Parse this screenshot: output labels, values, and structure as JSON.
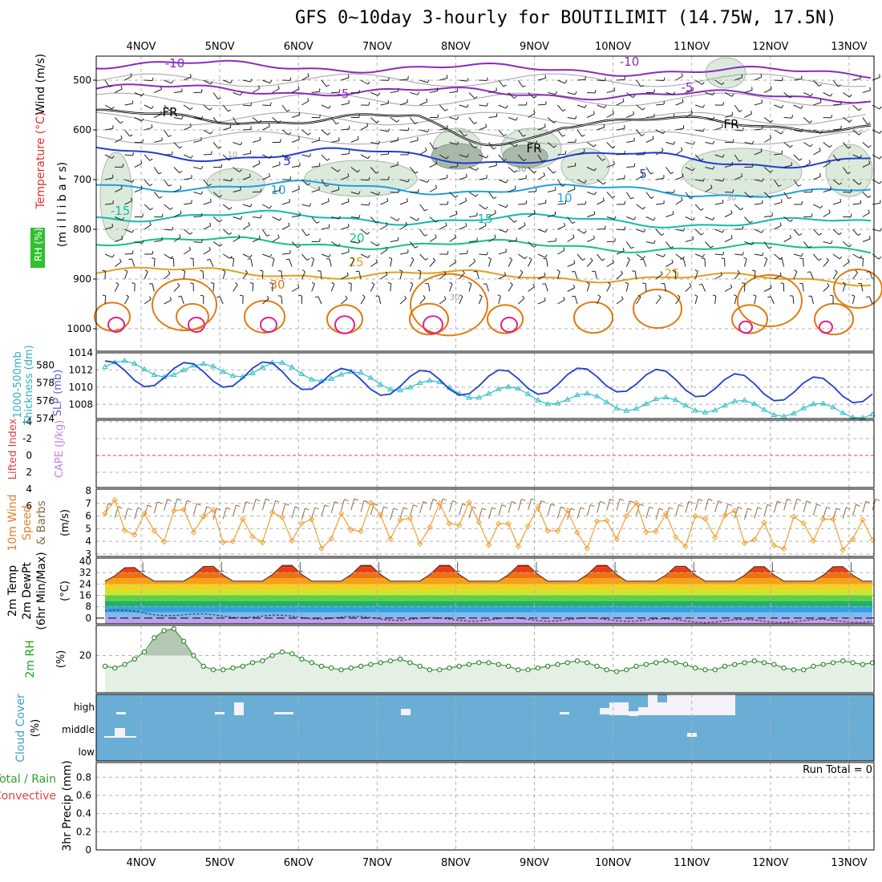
{
  "title": "GFS 0~10day 3-hourly for BOUTILIMIT (14.75W, 17.5N)",
  "dates": [
    "4NOV",
    "5NOV",
    "6NOV",
    "7NOV",
    "8NOV",
    "9NOV",
    "10NOV",
    "11NOV",
    "12NOV",
    "13NOV"
  ],
  "panels": {
    "upper": {
      "label_wind": "Wind (m/s)",
      "label_temp": "Temperature (°C)",
      "label_rh": "RH (%)",
      "label_unit": "(m i l l i b a r s)",
      "yticks": [
        "500",
        "600",
        "700",
        "800",
        "900",
        "1000"
      ]
    },
    "thick": {
      "label_a": "1000-500mb",
      "label_b": "Thickness (dm)",
      "label_c": "SLP (mb)",
      "left_ticks": [
        "580",
        "578",
        "576",
        "574"
      ],
      "right_ticks": [
        "1014",
        "1012",
        "1010",
        "1008"
      ]
    },
    "li": {
      "label_a": "Lifted Index",
      "label_b": "CAPE (J/kg)",
      "ticks": [
        "-4",
        "-2",
        "0",
        "2",
        "4",
        "6"
      ]
    },
    "wind10": {
      "label_a": "10m Wind",
      "label_b": "Speed",
      "label_c": "& Barbs",
      "label_unit": "(m/s)",
      "ticks": [
        "8",
        "7",
        "6",
        "5",
        "4",
        "3"
      ]
    },
    "temp2m": {
      "label_a": "2m Temp",
      "label_b": "2m DewPt",
      "label_c": "(6hr Min/Max)",
      "label_unit": "(°C)",
      "ticks": [
        "40",
        "32",
        "24",
        "16",
        "8",
        "0"
      ]
    },
    "rh2m": {
      "label_a": "2m RH",
      "label_unit": "(%)",
      "ticks": [
        "20"
      ]
    },
    "cloud": {
      "label_a": "Cloud Cover",
      "label_unit": "(%)",
      "ticks": [
        "high",
        "middle",
        "low"
      ]
    },
    "precip": {
      "label_a": "Total / Rain",
      "label_b": "Convective",
      "label_c": "3hr Precip (mm)",
      "ticks": [
        "0.8",
        "0.6",
        "0.4",
        "0.2",
        "0"
      ],
      "run_total": "Run Total = 0"
    }
  },
  "contour_labels": [
    "-10",
    "-10",
    "-5",
    "-5",
    "FR",
    "FR",
    "FR",
    "5",
    "5",
    "10",
    "10",
    "-15",
    "15",
    "20",
    "25",
    "25",
    "30",
    "30",
    "30",
    "30",
    "10"
  ],
  "colors": {
    "temp_purple": "#8a2bbd",
    "fr": "#000000",
    "t5": "#1f3fd0",
    "t10": "#1ea0e0",
    "t15": "#14b8b0",
    "t20": "#14c08a",
    "t25": "#e0a020",
    "t30": "#e07a10",
    "t35": "#e0208a",
    "slp": "#2040d0",
    "thick": "#30c0c8",
    "wind_speed": "#f0a030",
    "rh": "#30a030",
    "cloud": "#6aaed6",
    "cloud_white": "#f4f2f8"
  },
  "chart_data": [
    {
      "type": "line",
      "title": "1000-500mb Thickness (dm)",
      "x": [
        "4NOV",
        "5NOV",
        "6NOV",
        "7NOV",
        "8NOV",
        "9NOV",
        "10NOV",
        "11NOV",
        "12NOV",
        "13NOV"
      ],
      "series": [
        {
          "name": "1000-500mb Thickness (dm)",
          "values": [
            579.8,
            579.3,
            579.6,
            578.4,
            577.3,
            576.6,
            575.7,
            575.5,
            575.0,
            574.8
          ]
        }
      ],
      "ylim": [
        574,
        581
      ]
    },
    {
      "type": "line",
      "title": "SLP (mb)",
      "x": [
        "4NOV",
        "5NOV",
        "6NOV",
        "7NOV",
        "8NOV",
        "9NOV",
        "10NOV",
        "11NOV",
        "12NOV",
        "13NOV"
      ],
      "series": [
        {
          "name": "SLP (mb)",
          "values": [
            1011.6,
            1011.4,
            1011.5,
            1010.5,
            1010.5,
            1010.6,
            1010.9,
            1010.3,
            1009.8,
            1009.6
          ]
        }
      ],
      "ylim": [
        1007,
        1014
      ]
    },
    {
      "type": "line",
      "title": "10m Wind Speed (m/s)",
      "x": [
        "4NOV",
        "5NOV",
        "6NOV",
        "7NOV",
        "8NOV",
        "9NOV",
        "10NOV",
        "11NOV",
        "12NOV",
        "13NOV"
      ],
      "series": [
        {
          "name": "Speed",
          "values": [
            5.6,
            5.4,
            4.8,
            5.3,
            5.6,
            5.0,
            5.3,
            5.2,
            4.6,
            5.0
          ]
        }
      ],
      "ylim": [
        2.8,
        8
      ]
    },
    {
      "type": "area",
      "title": "2m Temp (°C)",
      "x": [
        "4NOV",
        "5NOV",
        "6NOV",
        "7NOV",
        "8NOV",
        "9NOV",
        "10NOV",
        "11NOV",
        "12NOV",
        "13NOV"
      ],
      "series": [
        {
          "name": "2m Temp max",
          "values": [
            36,
            37,
            38,
            38,
            38,
            38,
            38,
            37,
            37,
            37
          ]
        },
        {
          "name": "2m Temp min",
          "values": [
            26,
            26,
            26,
            26,
            26,
            26,
            26,
            26,
            26,
            26
          ]
        },
        {
          "name": "2m DewPt",
          "values": [
            5,
            2,
            1,
            0,
            -1,
            -1,
            -1,
            -2,
            -2,
            -2
          ]
        }
      ],
      "ylim": [
        -4,
        40
      ]
    },
    {
      "type": "line",
      "title": "2m RH (%)",
      "x": [
        "4NOV",
        "5NOV",
        "6NOV",
        "7NOV",
        "8NOV",
        "9NOV",
        "10NOV",
        "11NOV",
        "12NOV",
        "13NOV"
      ],
      "series": [
        {
          "name": "2m RH",
          "values": [
            30,
            18,
            12,
            10,
            12,
            14,
            10,
            11,
            12,
            12
          ]
        }
      ],
      "ylim": [
        0,
        35
      ]
    },
    {
      "type": "bar",
      "title": "3hr Precip (mm)",
      "categories": [
        "4NOV",
        "5NOV",
        "6NOV",
        "7NOV",
        "8NOV",
        "9NOV",
        "10NOV",
        "11NOV",
        "12NOV",
        "13NOV"
      ],
      "values": [
        0,
        0,
        0,
        0,
        0,
        0,
        0,
        0,
        0,
        0
      ],
      "ylim": [
        0,
        0.9
      ]
    }
  ]
}
